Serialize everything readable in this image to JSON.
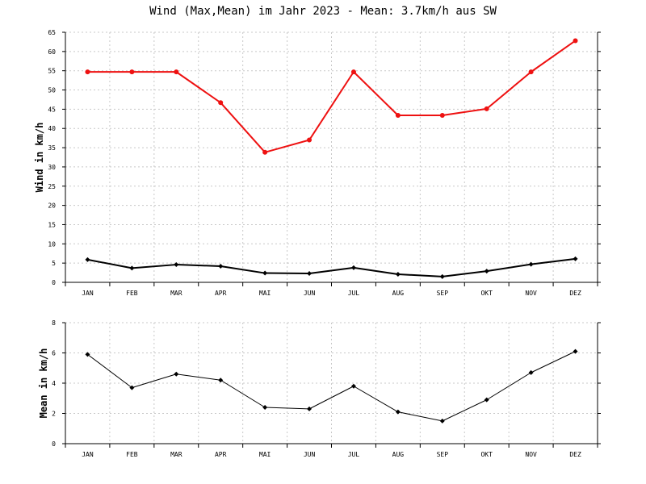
{
  "title": "Wind (Max,Mean) im Jahr 2023 - Mean: 3.7km/h aus SW",
  "chart_data": [
    {
      "type": "line",
      "ylabel": "Wind in km/h",
      "categories": [
        "JAN",
        "FEB",
        "MAR",
        "APR",
        "MAI",
        "JUN",
        "JUL",
        "AUG",
        "SEP",
        "OKT",
        "NOV",
        "DEZ"
      ],
      "ylim": [
        0,
        65
      ],
      "yticks": [
        0,
        5,
        10,
        15,
        20,
        25,
        30,
        35,
        40,
        45,
        50,
        55,
        60,
        65
      ],
      "grid": true,
      "series": [
        {
          "color": "#ee1111",
          "values": [
            54.7,
            54.7,
            54.7,
            46.7,
            33.8,
            37.0,
            54.7,
            43.4,
            43.4,
            45.1,
            54.7,
            62.8
          ]
        },
        {
          "color": "#000000",
          "values": [
            5.9,
            3.7,
            4.6,
            4.2,
            2.4,
            2.3,
            3.8,
            2.1,
            1.5,
            2.9,
            4.7,
            6.1
          ]
        }
      ]
    },
    {
      "type": "line",
      "ylabel": "Mean in km/h",
      "categories": [
        "JAN",
        "FEB",
        "MAR",
        "APR",
        "MAI",
        "JUN",
        "JUL",
        "AUG",
        "SEP",
        "OKT",
        "NOV",
        "DEZ"
      ],
      "ylim": [
        0,
        8
      ],
      "yticks": [
        0,
        2,
        4,
        6,
        8
      ],
      "grid": true,
      "series": [
        {
          "color": "#000000",
          "values": [
            5.9,
            3.7,
            4.6,
            4.2,
            2.4,
            2.3,
            3.8,
            2.1,
            1.5,
            2.9,
            4.7,
            6.1
          ]
        }
      ]
    }
  ]
}
